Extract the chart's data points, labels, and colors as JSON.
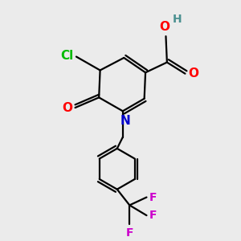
{
  "background_color": "#ebebeb",
  "atom_colors": {
    "C": "#000000",
    "N": "#0000cc",
    "O": "#ff0000",
    "Cl": "#00bb00",
    "F": "#cc00cc",
    "H": "#4a9090"
  },
  "figsize": [
    3.0,
    3.0
  ],
  "dpi": 100
}
